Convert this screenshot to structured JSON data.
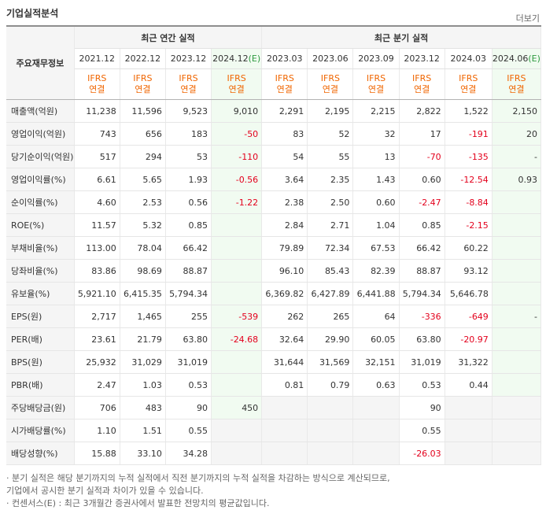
{
  "header": {
    "title": "기업실적분석",
    "more_label": "더보기"
  },
  "table": {
    "row_head_label": "주요재무정보",
    "group_annual": "최근 연간 실적",
    "group_quarter": "최근 분기 실적",
    "periods": [
      "2021.12",
      "2022.12",
      "2023.12",
      "2024.12(E)",
      "2023.03",
      "2023.06",
      "2023.09",
      "2023.12",
      "2024.03",
      "2024.06(E)"
    ],
    "ifrs_line1": "IFRS",
    "ifrs_line2": "연결",
    "rows": [
      {
        "label": "매출액(억원)",
        "values": [
          "11,238",
          "11,596",
          "9,523",
          "9,010",
          "2,291",
          "2,195",
          "2,215",
          "2,822",
          "1,522",
          "2,150"
        ]
      },
      {
        "label": "영업이익(억원)",
        "values": [
          "743",
          "656",
          "183",
          "-50",
          "83",
          "52",
          "32",
          "17",
          "-191",
          "20"
        ]
      },
      {
        "label": "당기순이익(억원)",
        "values": [
          "517",
          "294",
          "53",
          "-110",
          "54",
          "55",
          "13",
          "-70",
          "-135",
          "-"
        ]
      },
      {
        "label": "영업이익률(%)",
        "values": [
          "6.61",
          "5.65",
          "1.93",
          "-0.56",
          "3.64",
          "2.35",
          "1.43",
          "0.60",
          "-12.54",
          "0.93"
        ]
      },
      {
        "label": "순이익률(%)",
        "values": [
          "4.60",
          "2.53",
          "0.56",
          "-1.22",
          "2.38",
          "2.50",
          "0.60",
          "-2.47",
          "-8.84",
          ""
        ]
      },
      {
        "label": "ROE(%)",
        "values": [
          "11.57",
          "5.32",
          "0.85",
          "",
          "2.84",
          "2.71",
          "1.04",
          "0.85",
          "-2.15",
          ""
        ]
      },
      {
        "label": "부채비율(%)",
        "values": [
          "113.00",
          "78.04",
          "66.42",
          "",
          "79.89",
          "72.34",
          "67.53",
          "66.42",
          "60.22",
          ""
        ]
      },
      {
        "label": "당좌비율(%)",
        "values": [
          "83.86",
          "98.69",
          "88.87",
          "",
          "96.10",
          "85.43",
          "82.39",
          "88.87",
          "93.12",
          ""
        ]
      },
      {
        "label": "유보율(%)",
        "values": [
          "5,921.10",
          "6,415.35",
          "5,794.34",
          "",
          "6,369.82",
          "6,427.89",
          "6,441.88",
          "5,794.34",
          "5,646.78",
          ""
        ]
      },
      {
        "label": "EPS(원)",
        "values": [
          "2,717",
          "1,465",
          "255",
          "-539",
          "262",
          "265",
          "64",
          "-336",
          "-649",
          "-"
        ]
      },
      {
        "label": "PER(배)",
        "values": [
          "23.61",
          "21.79",
          "63.80",
          "-24.68",
          "32.64",
          "29.90",
          "60.05",
          "63.80",
          "-20.97",
          ""
        ]
      },
      {
        "label": "BPS(원)",
        "values": [
          "25,932",
          "31,029",
          "31,019",
          "",
          "31,644",
          "31,569",
          "32,151",
          "31,019",
          "31,322",
          ""
        ]
      },
      {
        "label": "PBR(배)",
        "values": [
          "2.47",
          "1.03",
          "0.53",
          "",
          "0.81",
          "0.79",
          "0.63",
          "0.53",
          "0.44",
          ""
        ]
      },
      {
        "label": "주당배당금(원)",
        "values": [
          "706",
          "483",
          "90",
          "450",
          "",
          "",
          "",
          "90",
          "",
          ""
        ]
      },
      {
        "label": "시가배당률(%)",
        "values": [
          "1.10",
          "1.51",
          "0.55",
          "",
          "",
          "",
          "",
          "0.55",
          "",
          ""
        ]
      },
      {
        "label": "배당성향(%)",
        "values": [
          "15.88",
          "33.10",
          "34.28",
          "",
          "",
          "",
          "",
          "-26.03",
          "",
          ""
        ]
      }
    ]
  },
  "notes": [
    "· 분기 실적은 해당 분기까지의 누적 실적에서 직전 분기까지의 누적 실적을 차감하는 방식으로 계산되므로,",
    "  기업에서 공시한 분기 실적과 차이가 있을 수 있습니다.",
    "· 컨센서스(E) : 최근 3개월간 증권사에서 발표한 전망치의 평균값입니다."
  ]
}
